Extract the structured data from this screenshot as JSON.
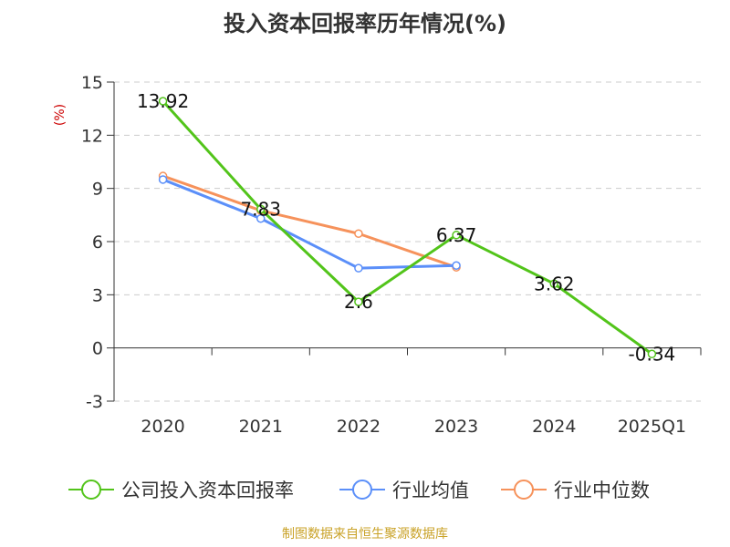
{
  "title": "投入资本回报率历年情况(%)",
  "source": "制图数据来自恒生聚源数据库",
  "chart_data": {
    "type": "line",
    "title": "投入资本回报率历年情况(%)",
    "ylabel": "(%)",
    "xlabel": "",
    "categories": [
      "2020",
      "2021",
      "2022",
      "2023",
      "2024",
      "2025Q1"
    ],
    "ylim": [
      -3,
      15
    ],
    "yticks": [
      -3,
      0,
      3,
      6,
      9,
      12,
      15
    ],
    "grid": true,
    "legend": "bottom",
    "series": [
      {
        "name": "公司投入资本回报率",
        "color": "#52c41a",
        "values": [
          13.92,
          7.83,
          2.6,
          6.37,
          3.62,
          -0.34
        ],
        "labels": [
          "13.92",
          "7.83",
          "2.6",
          "6.37",
          "3.62",
          "-0.34"
        ]
      },
      {
        "name": "行业均值",
        "color": "#5b8ff9",
        "values": [
          9.5,
          7.3,
          4.5,
          4.65,
          null,
          null
        ]
      },
      {
        "name": "行业中位数",
        "color": "#f6925b",
        "values": [
          9.7,
          7.75,
          6.45,
          4.55,
          null,
          null
        ]
      }
    ]
  }
}
